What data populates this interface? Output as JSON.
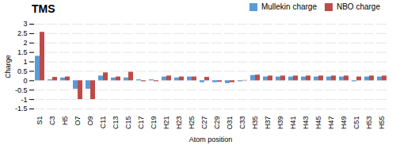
{
  "chart_data": {
    "type": "bar",
    "title": "TMS",
    "xlabel": "Atom position",
    "ylabel": "Charge",
    "categories": [
      "S1",
      "C3",
      "H5",
      "O7",
      "O9",
      "C11",
      "C13",
      "C15",
      "C17",
      "C19",
      "H21",
      "H23",
      "H25",
      "C27",
      "C29",
      "O31",
      "C33",
      "H35",
      "H37",
      "H39",
      "H41",
      "H43",
      "H45",
      "H47",
      "H49",
      "C51",
      "H53",
      "H55"
    ],
    "series": [
      {
        "name": "Mullekin charge",
        "color": "#5B9BD5",
        "values": [
          1.3,
          0.05,
          0.15,
          -0.45,
          -0.45,
          0.25,
          0.15,
          0.15,
          0.05,
          0.05,
          0.2,
          0.15,
          0.2,
          -0.1,
          -0.1,
          -0.15,
          -0.05,
          0.28,
          0.2,
          0.2,
          0.2,
          0.2,
          0.2,
          0.2,
          0.2,
          -0.05,
          0.2,
          0.2
        ]
      },
      {
        "name": "NBO charge",
        "color": "#BE4B48",
        "values": [
          2.57,
          0.18,
          0.2,
          -1.0,
          -1.0,
          0.42,
          0.2,
          0.45,
          -0.05,
          -0.05,
          0.25,
          0.2,
          0.2,
          0.18,
          -0.08,
          -0.1,
          0.02,
          0.3,
          0.25,
          0.25,
          0.25,
          0.25,
          0.25,
          0.25,
          0.25,
          0.2,
          0.25,
          0.25
        ]
      }
    ],
    "ylim": [
      -1.5,
      3.0
    ],
    "yticks": [
      -1.5,
      -1,
      -0.5,
      0,
      0.5,
      1,
      1.5,
      2,
      2.5,
      3
    ],
    "grid": true,
    "legend": "top"
  }
}
